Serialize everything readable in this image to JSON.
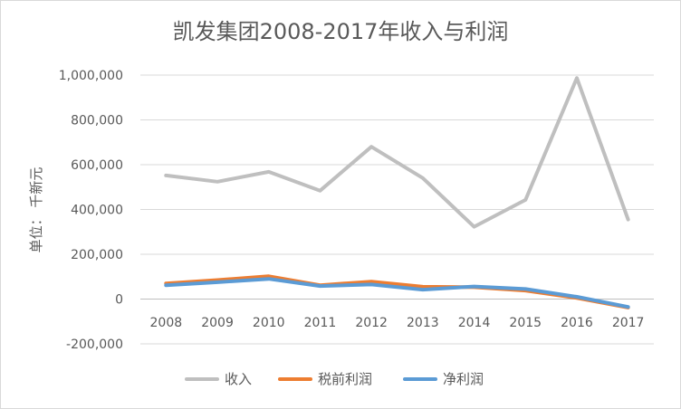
{
  "chart_data": {
    "type": "line",
    "title": "凯发集团2008-2017年收入与利润",
    "xlabel": "",
    "ylabel": "单位： 千新元",
    "categories": [
      "2008",
      "2009",
      "2010",
      "2011",
      "2012",
      "2013",
      "2014",
      "2015",
      "2016",
      "2017"
    ],
    "ylim": [
      -200000,
      1000000
    ],
    "yticks": [
      -200000,
      0,
      200000,
      400000,
      600000,
      800000,
      1000000
    ],
    "ytick_labels": [
      "-200,000",
      "0",
      "200,000",
      "400,000",
      "600,000",
      "800,000",
      "1,000,000"
    ],
    "grid": "horizontal",
    "legend": "bottom",
    "series": [
      {
        "name": "收入",
        "color": "#bfbfbf",
        "values": [
          552000,
          524000,
          568000,
          484000,
          680000,
          540000,
          323000,
          443000,
          987000,
          355000
        ]
      },
      {
        "name": "税前利润",
        "color": "#ed7d31",
        "values": [
          70000,
          85000,
          102000,
          62000,
          78000,
          55000,
          53000,
          38000,
          5000,
          -38000
        ]
      },
      {
        "name": "净利润",
        "color": "#5b9bd5",
        "values": [
          62000,
          75000,
          90000,
          58000,
          65000,
          42000,
          56000,
          45000,
          10000,
          -35000
        ]
      }
    ]
  }
}
